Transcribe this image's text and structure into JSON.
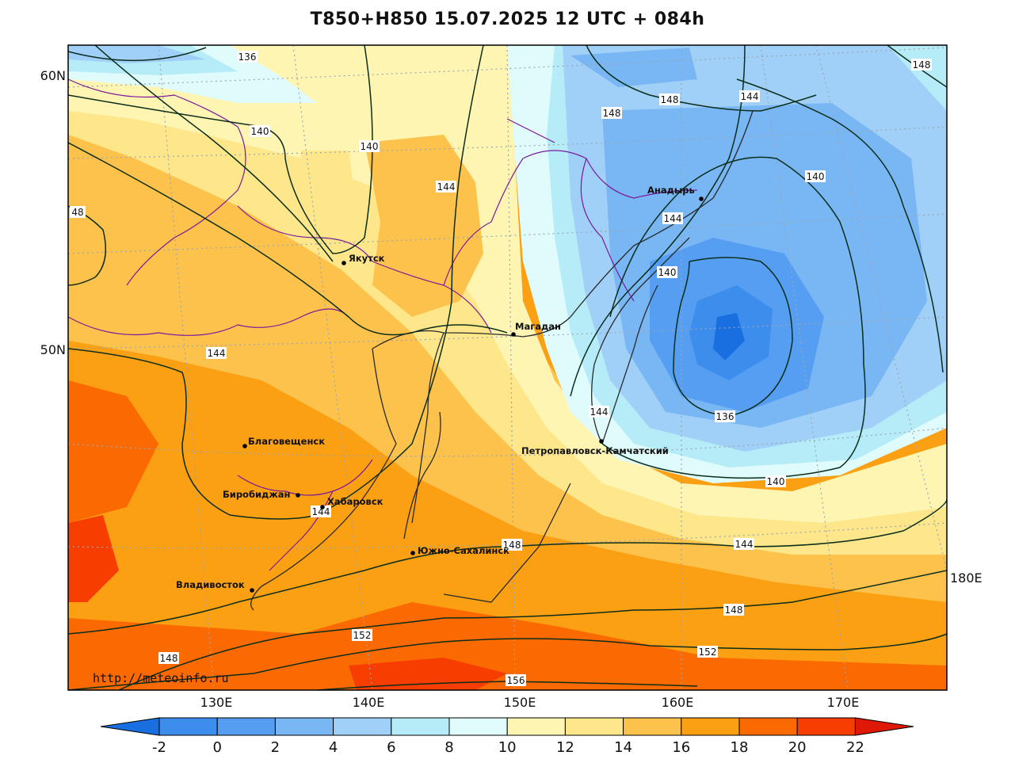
{
  "title": "T850+H850 15.07.2025 12 UTC + 084h",
  "credit": "http://meteoinfo.ru",
  "lat_labels": [
    "60N",
    "50N"
  ],
  "lon_labels": [
    "130E",
    "140E",
    "150E",
    "160E",
    "170E",
    "180E"
  ],
  "colorbar": {
    "ticks": [
      "-2",
      "0",
      "2",
      "4",
      "6",
      "8",
      "10",
      "12",
      "14",
      "16",
      "18",
      "20",
      "22"
    ],
    "colors": [
      "#1a6fe0",
      "#3d8ded",
      "#559ef1",
      "#79b6f4",
      "#a0d0f7",
      "#b6ecf7",
      "#e0fbfb",
      "#fff5b3",
      "#fde78a",
      "#fdc24b",
      "#fb9f13",
      "#fb6a00",
      "#f83d00",
      "#e01808"
    ]
  },
  "cities": [
    {
      "name": "Якутск"
    },
    {
      "name": "Магадан"
    },
    {
      "name": "Анадырь"
    },
    {
      "name": "Благовещенск"
    },
    {
      "name": "Биробиджан"
    },
    {
      "name": "Хабаровск"
    },
    {
      "name": "Петропавловск-Камчатский"
    },
    {
      "name": "Южно-Сахалинск"
    },
    {
      "name": "Владивосток"
    }
  ],
  "isohypse_labels": [
    "136",
    "140",
    "140",
    "144",
    "148",
    "148",
    "144",
    "48",
    "140",
    "144",
    "140",
    "144",
    "144",
    "136",
    "140",
    "144",
    "148",
    "148",
    "148",
    "152",
    "152",
    "156",
    "148"
  ]
}
